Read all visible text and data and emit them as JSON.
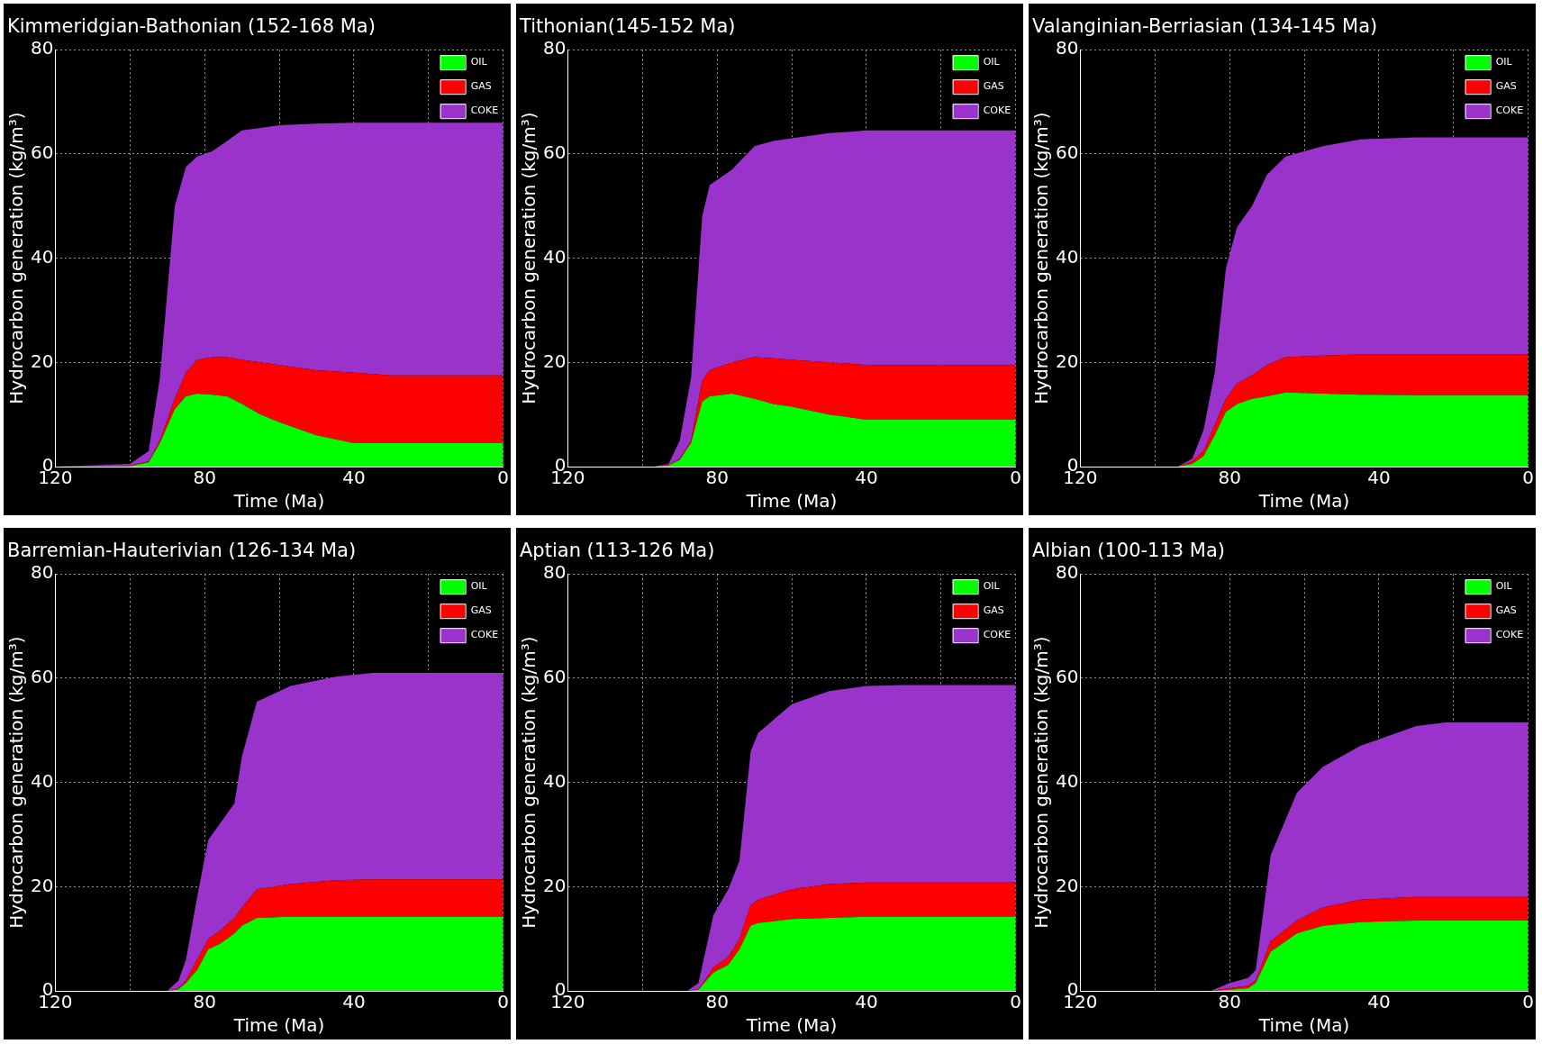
{
  "chart_data": [
    {
      "type": "area",
      "stacked": true,
      "title": "Kimmeridgian-Bathonian (152-168 Ma)",
      "xlabel": "Time (Ma)",
      "ylabel": "Hydrocarbon generation (kg/m³)",
      "xlim": [
        120,
        0
      ],
      "xticks": [
        120,
        {
          "value": 100,
          "label": null
        },
        80,
        {
          "value": 60,
          "label": null
        },
        40,
        {
          "value": 20,
          "label": null
        },
        0
      ],
      "ylim": [
        0,
        80
      ],
      "yticks": [
        0,
        20,
        40,
        60,
        80
      ],
      "grid": true,
      "legend": "top right",
      "x": [
        120,
        100,
        95,
        92,
        88,
        85,
        82,
        78,
        74,
        70,
        65,
        60,
        50,
        40,
        30,
        0
      ],
      "series": [
        {
          "name": "OIL",
          "color": "#00ff00",
          "values": [
            0,
            0.1,
            0.8,
            4.5,
            11,
            13.5,
            14,
            13.8,
            13.5,
            12,
            10,
            8.5,
            6,
            4.5,
            4.5,
            4.5
          ]
        },
        {
          "name": "GAS",
          "color": "#ff0000",
          "values": [
            0,
            0.1,
            0.2,
            0.5,
            2,
            4.5,
            6.5,
            7.2,
            7.5,
            8.5,
            10,
            11,
            12.5,
            13.5,
            13,
            13
          ]
        },
        {
          "name": "COKE",
          "color": "#9933cc",
          "values": [
            0,
            0.3,
            2,
            12,
            37,
            39.5,
            39,
            39.5,
            41.5,
            44,
            45,
            46,
            47.3,
            48,
            48.5,
            48.5
          ]
        }
      ]
    },
    {
      "type": "area",
      "stacked": true,
      "title": "Tithonian(145-152 Ma)",
      "xlabel": "Time (Ma)",
      "ylabel": "Hydrocarbon generation (kg/m³)",
      "xlim": [
        120,
        0
      ],
      "xticks": [
        120,
        {
          "value": 100,
          "label": null
        },
        80,
        {
          "value": 60,
          "label": null
        },
        40,
        {
          "value": 20,
          "label": null
        },
        0
      ],
      "ylim": [
        0,
        80
      ],
      "yticks": [
        0,
        20,
        40,
        60,
        80
      ],
      "grid": true,
      "legend": "top right",
      "x": [
        120,
        97,
        93,
        90,
        87,
        84,
        82,
        76,
        70,
        65,
        60,
        50,
        45,
        40,
        0
      ],
      "series": [
        {
          "name": "OIL",
          "color": "#00ff00",
          "values": [
            0,
            0,
            0.2,
            1.3,
            4.5,
            12.5,
            13.5,
            14,
            13,
            12,
            11.5,
            10,
            9.5,
            9,
            9
          ]
        },
        {
          "name": "GAS",
          "color": "#ff0000",
          "values": [
            0,
            0,
            0.1,
            0.2,
            0.5,
            4,
            5,
            6,
            8,
            8.8,
            9,
            10,
            10.3,
            10.5,
            10.5
          ]
        },
        {
          "name": "COKE",
          "color": "#9933cc",
          "values": [
            0,
            0,
            0.2,
            3.5,
            12,
            31.5,
            35.5,
            37,
            40.5,
            41.7,
            42.5,
            44,
            44.4,
            45,
            45
          ]
        }
      ]
    },
    {
      "type": "area",
      "stacked": true,
      "title": "Valanginian-Berriasian (134-145 Ma)",
      "xlabel": "Time (Ma)",
      "ylabel": "Hydrocarbon generation (kg/m³)",
      "xlim": [
        120,
        0
      ],
      "xticks": [
        120,
        {
          "value": 100,
          "label": null
        },
        80,
        {
          "value": 60,
          "label": null
        },
        40,
        {
          "value": 20,
          "label": null
        },
        0
      ],
      "ylim": [
        0,
        80
      ],
      "yticks": [
        0,
        20,
        40,
        60,
        80
      ],
      "grid": true,
      "legend": "top right",
      "x": [
        120,
        94,
        90,
        87,
        84,
        81,
        78,
        74,
        70,
        65,
        55,
        45,
        30,
        0
      ],
      "series": [
        {
          "name": "OIL",
          "color": "#00ff00",
          "values": [
            0,
            0,
            0.5,
            2,
            6,
            10.5,
            12,
            13,
            13.5,
            14.2,
            14,
            13.8,
            13.7,
            13.7
          ]
        },
        {
          "name": "GAS",
          "color": "#ff0000",
          "values": [
            0,
            0,
            0.5,
            1,
            2,
            2.5,
            4,
            4.5,
            6,
            6.8,
            7.3,
            7.7,
            7.8,
            7.8
          ]
        },
        {
          "name": "COKE",
          "color": "#9933cc",
          "values": [
            0,
            0,
            0.5,
            4,
            10,
            25,
            30,
            32.5,
            36.5,
            38.5,
            40.2,
            41.3,
            41.7,
            41.7
          ]
        }
      ]
    },
    {
      "type": "area",
      "stacked": true,
      "title": "Barremian-Hauterivian (126-134 Ma)",
      "xlabel": "Time (Ma)",
      "ylabel": "Hydrocarbon generation (kg/m³)",
      "xlim": [
        120,
        0
      ],
      "xticks": [
        120,
        {
          "value": 100,
          "label": null
        },
        80,
        {
          "value": 60,
          "label": null
        },
        40,
        {
          "value": 20,
          "label": null
        },
        0
      ],
      "ylim": [
        0,
        80
      ],
      "yticks": [
        0,
        20,
        40,
        60,
        80
      ],
      "grid": true,
      "legend": "top right",
      "x": [
        120,
        90,
        87,
        85,
        82,
        79,
        76,
        72,
        70,
        66,
        57,
        45,
        35,
        0
      ],
      "series": [
        {
          "name": "OIL",
          "color": "#00ff00",
          "values": [
            0,
            0,
            0.3,
            1.5,
            4,
            8,
            9,
            11,
            12.5,
            14,
            14.2,
            14.2,
            14.2,
            14.2
          ]
        },
        {
          "name": "GAS",
          "color": "#ff0000",
          "values": [
            0,
            0,
            0.2,
            0.5,
            2,
            2,
            2.5,
            3,
            3.5,
            5.5,
            6.3,
            7,
            7.2,
            7.2
          ]
        },
        {
          "name": "COKE",
          "color": "#9933cc",
          "values": [
            0,
            0,
            1.5,
            4,
            12,
            19,
            20.5,
            22,
            29,
            36,
            38,
            39.1,
            39.6,
            39.6
          ]
        }
      ]
    },
    {
      "type": "area",
      "stacked": true,
      "title": "Aptian (113-126 Ma)",
      "xlabel": "Time (Ma)",
      "ylabel": "Hydrocarbon generation (kg/m³)",
      "xlim": [
        120,
        0
      ],
      "xticks": [
        120,
        {
          "value": 100,
          "label": null
        },
        80,
        {
          "value": 60,
          "label": null
        },
        40,
        {
          "value": 20,
          "label": null
        },
        0
      ],
      "ylim": [
        0,
        80
      ],
      "yticks": [
        0,
        20,
        40,
        60,
        80
      ],
      "grid": true,
      "legend": "top right",
      "x": [
        120,
        88,
        85,
        81,
        77,
        74,
        71,
        69,
        60,
        50,
        40,
        30,
        0
      ],
      "series": [
        {
          "name": "OIL",
          "color": "#00ff00",
          "values": [
            0,
            0,
            0.2,
            3.5,
            5,
            8,
            12.5,
            13,
            13.8,
            14,
            14.2,
            14.2,
            14.2
          ]
        },
        {
          "name": "GAS",
          "color": "#ff0000",
          "values": [
            0,
            0,
            0.1,
            1,
            1.5,
            2,
            4,
            4.5,
            5.7,
            6.5,
            6.6,
            6.6,
            6.6
          ]
        },
        {
          "name": "COKE",
          "color": "#9933cc",
          "values": [
            0,
            0,
            1.2,
            10,
            13,
            15,
            29.5,
            32,
            35.5,
            37,
            37.7,
            37.9,
            37.9
          ]
        }
      ]
    },
    {
      "type": "area",
      "stacked": true,
      "title": "Albian (100-113 Ma)",
      "xlabel": "Time (Ma)",
      "ylabel": "Hydrocarbon generation (kg/m³)",
      "xlim": [
        120,
        0
      ],
      "xticks": [
        120,
        {
          "value": 100,
          "label": null
        },
        80,
        {
          "value": 60,
          "label": null
        },
        40,
        {
          "value": 20,
          "label": null
        },
        0
      ],
      "ylim": [
        0,
        80
      ],
      "yticks": [
        0,
        20,
        40,
        60,
        80
      ],
      "grid": true,
      "legend": "top right",
      "x": [
        120,
        85,
        80,
        75,
        73,
        69,
        62,
        55,
        45,
        30,
        22,
        0
      ],
      "series": [
        {
          "name": "OIL",
          "color": "#00ff00",
          "values": [
            0,
            0,
            0.2,
            0.5,
            1.5,
            7.5,
            11,
            12.5,
            13.2,
            13.5,
            13.5,
            13.5
          ]
        },
        {
          "name": "GAS",
          "color": "#ff0000",
          "values": [
            0,
            0,
            0.3,
            0.5,
            0.5,
            2,
            2.5,
            3.5,
            4.3,
            4.5,
            4.5,
            4.5
          ]
        },
        {
          "name": "COKE",
          "color": "#9933cc",
          "values": [
            0,
            0,
            1,
            1.5,
            2,
            16.5,
            24.5,
            27,
            29.5,
            32.8,
            33.5,
            33.5
          ]
        }
      ]
    }
  ]
}
